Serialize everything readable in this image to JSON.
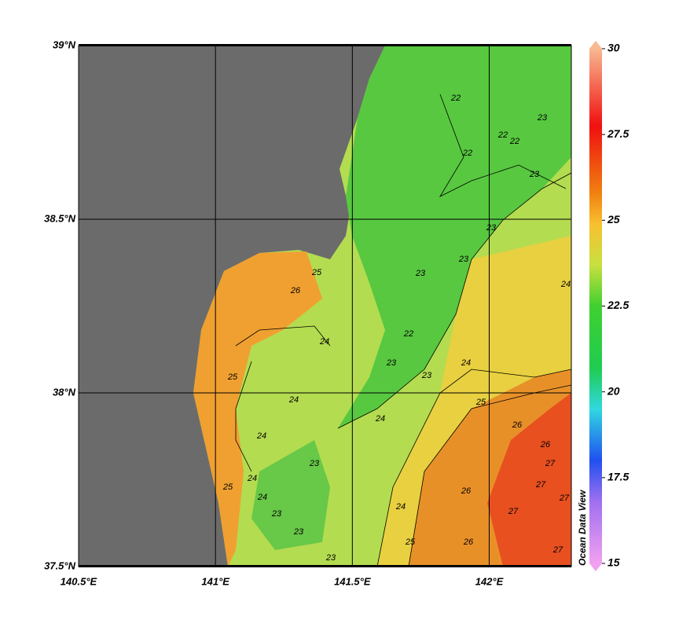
{
  "map": {
    "xlim": [
      140.5,
      142.3
    ],
    "ylim": [
      37.5,
      39
    ],
    "xticks": [
      {
        "value": 140.5,
        "label": "140.5°E"
      },
      {
        "value": 141,
        "label": "141°E"
      },
      {
        "value": 141.5,
        "label": "141.5°E"
      },
      {
        "value": 142,
        "label": "142°E"
      }
    ],
    "yticks": [
      {
        "value": 37.5,
        "label": "37.5°N"
      },
      {
        "value": 38,
        "label": "38°N"
      },
      {
        "value": 38.5,
        "label": "38.5°N"
      },
      {
        "value": 39,
        "label": "39°N"
      }
    ],
    "contour_labels": [
      22,
      22,
      22,
      22,
      23,
      23,
      23,
      23,
      23,
      24,
      26,
      25,
      24,
      24,
      23,
      23,
      22,
      25,
      24,
      25,
      26,
      24,
      24,
      23,
      24,
      24,
      23,
      25,
      27,
      26,
      27,
      27,
      26,
      26,
      25,
      24,
      23,
      23,
      27,
      27
    ]
  },
  "colorbar": {
    "lim": [
      15,
      30
    ],
    "ticks": [
      30,
      27.5,
      25,
      22.5,
      20,
      17.5,
      15
    ],
    "label": "Ocean Data View"
  }
}
